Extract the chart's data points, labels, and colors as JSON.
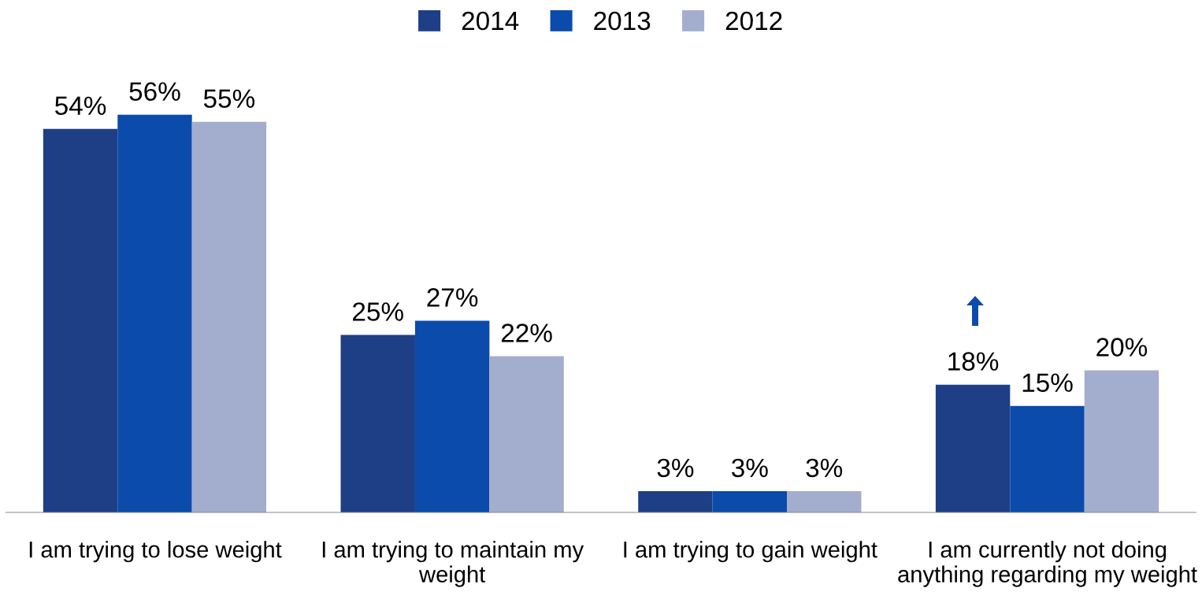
{
  "chart_data": {
    "type": "bar",
    "categories": [
      "I am trying to lose weight",
      "I am trying to maintain my\nweight",
      "I am trying to gain weight",
      "I am currently not doing\nanything regarding my weight"
    ],
    "series": [
      {
        "name": "2014",
        "color": "#1e3f86",
        "values": [
          54,
          25,
          3,
          18
        ],
        "value_labels": [
          "54%",
          "25%",
          "3%",
          "18%"
        ]
      },
      {
        "name": "2013",
        "color": "#0a4bab",
        "values": [
          56,
          27,
          3,
          15
        ],
        "value_labels": [
          "56%",
          "27%",
          "3%",
          "15%"
        ]
      },
      {
        "name": "2012",
        "color": "#a3aece",
        "values": [
          55,
          22,
          3,
          20
        ],
        "value_labels": [
          "55%",
          "22%",
          "3%",
          "20%"
        ]
      }
    ],
    "legend": "top",
    "grid": false
  }
}
